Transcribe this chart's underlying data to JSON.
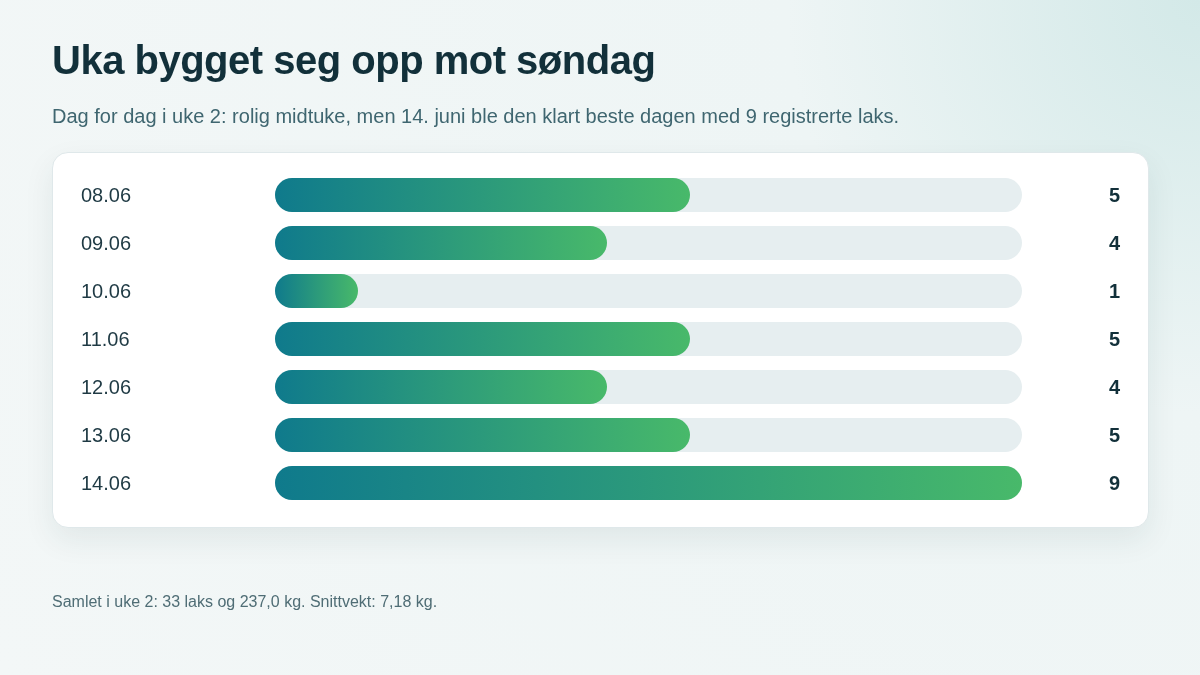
{
  "chart_data": {
    "type": "bar",
    "orientation": "horizontal",
    "title": "Uka bygget seg opp mot søndag",
    "subtitle": "Dag for dag i uke 2: rolig midtuke, men 14. juni ble den klart beste dagen med 9 registrerte laks.",
    "categories": [
      "08.06",
      "09.06",
      "10.06",
      "11.06",
      "12.06",
      "13.06",
      "14.06"
    ],
    "values": [
      5,
      4,
      1,
      5,
      4,
      5,
      9
    ],
    "color": "#0f7a8c",
    "xlim": [
      0,
      9
    ],
    "data_labels": true,
    "tick_labels": "y",
    "annotations": [
      "Samlet i uke 2: 33 laks og 237,0 kg. Snittvekt: 7,18 kg."
    ]
  }
}
